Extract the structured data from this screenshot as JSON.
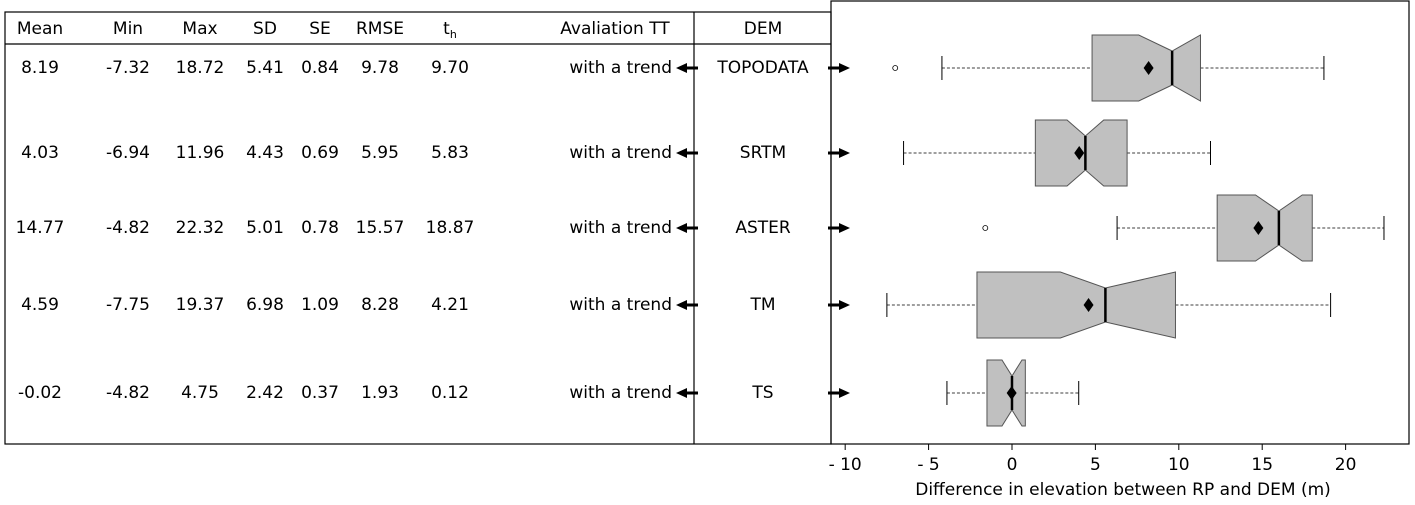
{
  "table": {
    "columns": [
      "Mean",
      "Min",
      "Max",
      "SD",
      "SE",
      "RMSE",
      {
        "base": "t",
        "sub": "h"
      },
      "Avaliation TT",
      "DEM"
    ],
    "rows": [
      [
        "8.19",
        "-7.32",
        "18.72",
        "5.41",
        "0.84",
        "9.78",
        "9.70",
        "with a trend"
      ],
      [
        "4.03",
        "-6.94",
        "11.96",
        "4.43",
        "0.69",
        "5.95",
        "5.83",
        "with a trend"
      ],
      [
        "14.77",
        "-4.82",
        "22.32",
        "5.01",
        "0.78",
        "15.57",
        "18.87",
        "with a trend"
      ],
      [
        "4.59",
        "-7.75",
        "19.37",
        "6.98",
        "1.09",
        "8.28",
        "4.21",
        "with a trend"
      ],
      [
        "-0.02",
        "-4.82",
        "4.75",
        "2.42",
        "0.37",
        "1.93",
        "0.12",
        "with a trend"
      ]
    ]
  },
  "chart_data": {
    "type": "box",
    "categories": [
      "TOPODATA",
      "SRTM",
      "ASTER",
      "TM",
      "TS"
    ],
    "xlabel": "Difference in elevation between RP and DEM (m)",
    "xlim": [
      -10.85,
      23.8
    ],
    "xticks": [
      {
        "value": -10,
        "label": "- 10"
      },
      {
        "value": -5,
        "label": "- 5"
      },
      0,
      5,
      10,
      15,
      20
    ],
    "color": "#c0c0c0",
    "boxes": [
      {
        "whislo": -4.2,
        "q1": 4.8,
        "notch_lo": 7.6,
        "med": 9.6,
        "notch_hi": 11.3,
        "q3": 11.3,
        "whishi": 18.7,
        "mean": 8.19,
        "fliers": [
          -7.0
        ]
      },
      {
        "whislo": -6.5,
        "q1": 1.4,
        "notch_lo": 3.3,
        "med": 4.4,
        "notch_hi": 5.5,
        "q3": 6.9,
        "whishi": 11.9,
        "mean": 4.03,
        "fliers": []
      },
      {
        "whislo": 6.3,
        "q1": 12.3,
        "notch_lo": 14.6,
        "med": 16.0,
        "notch_hi": 17.4,
        "q3": 18.0,
        "whishi": 22.3,
        "mean": 14.77,
        "fliers": [
          -1.6
        ]
      },
      {
        "whislo": -7.5,
        "q1": -2.1,
        "notch_lo": 2.9,
        "med": 5.6,
        "notch_hi": 9.8,
        "q3": 9.8,
        "whishi": 19.1,
        "mean": 4.59,
        "fliers": []
      },
      {
        "whislo": -3.9,
        "q1": -1.5,
        "notch_lo": -0.6,
        "med": 0.0,
        "notch_hi": 0.6,
        "q3": 0.8,
        "whishi": 4.0,
        "mean": -0.02,
        "fliers": []
      }
    ]
  }
}
